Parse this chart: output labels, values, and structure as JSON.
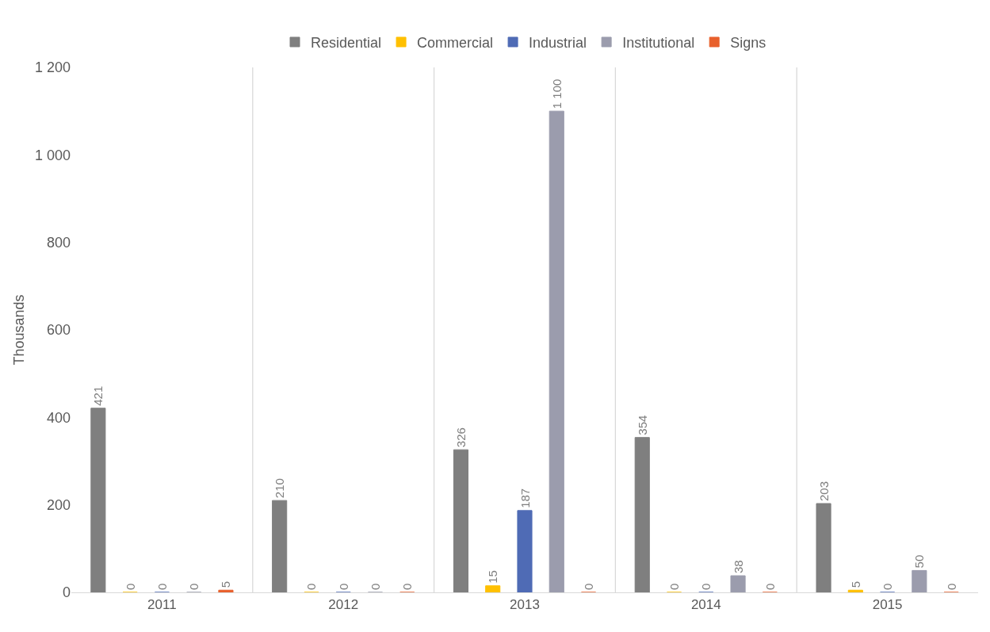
{
  "chart_data": {
    "type": "bar",
    "ylabel": "Thousands",
    "categories": [
      "2011",
      "2012",
      "2013",
      "2014",
      "2015"
    ],
    "series": [
      {
        "name": "Residential",
        "color": "#7f7f7f",
        "values": [
          421,
          210,
          326,
          354,
          203
        ],
        "value_labels": [
          "421",
          "210",
          "326",
          "354",
          "203"
        ]
      },
      {
        "name": "Commercial",
        "color": "#ffc000",
        "values": [
          0,
          0,
          15,
          0,
          5
        ],
        "value_labels": [
          "0",
          "0",
          "15",
          "0",
          "5"
        ]
      },
      {
        "name": "Industrial",
        "color": "#4f6bb5",
        "values": [
          0,
          0,
          187,
          0,
          0
        ],
        "value_labels": [
          "0",
          "0",
          "187",
          "0",
          "0"
        ]
      },
      {
        "name": "Institutional",
        "color": "#9b9cad",
        "values": [
          0,
          0,
          1100,
          38,
          50
        ],
        "value_labels": [
          "0",
          "0",
          "1 100",
          "38",
          "50"
        ]
      },
      {
        "name": "Signs",
        "color": "#e8602c",
        "values": [
          5,
          0,
          0,
          0,
          0
        ],
        "value_labels": [
          "5",
          "0",
          "0",
          "0",
          "0"
        ]
      }
    ],
    "ylim": [
      0,
      1200
    ],
    "yticks": [
      0,
      200,
      400,
      600,
      800,
      {
        "value": 1000,
        "label": "1 000"
      },
      {
        "value": 1200,
        "label": "1 200"
      }
    ],
    "grid": "x",
    "legend": "top"
  }
}
